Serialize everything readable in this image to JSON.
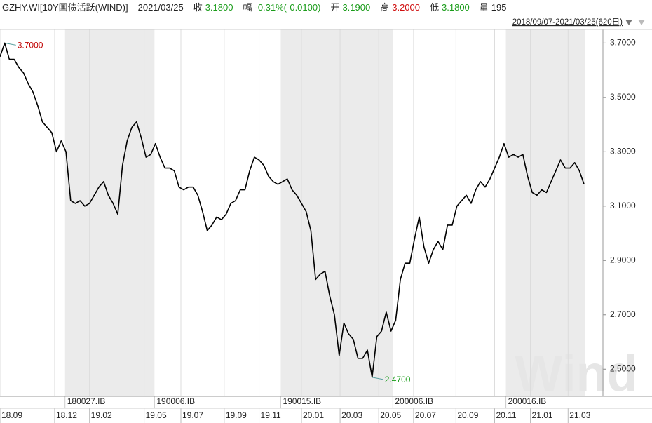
{
  "chart_data": {
    "type": "line",
    "ticker": "GZHY.WI[10Y国债活跃(WIND)]",
    "date": "2021/03/25",
    "quotes": [
      {
        "label": "收",
        "value": "3.1800",
        "color": "#1a9c1a"
      },
      {
        "label": "幅",
        "value": "-0.31%(-0.0100)",
        "color": "#1a9c1a"
      },
      {
        "label": "开",
        "value": "3.1900",
        "color": "#1a9c1a"
      },
      {
        "label": "高",
        "value": "3.2000",
        "color": "#d01010"
      },
      {
        "label": "低",
        "value": "3.1800",
        "color": "#1a9c1a"
      },
      {
        "label": "量",
        "value": "195",
        "color": "#222222"
      }
    ],
    "range_label": "2018/09/07-2021/03/25(620日)",
    "watermark": "Wind",
    "x": [
      0,
      5,
      10,
      15,
      20,
      25,
      30,
      35,
      40,
      45,
      50,
      55,
      60,
      65,
      70,
      75,
      80,
      85,
      90,
      95,
      100,
      105,
      110,
      115,
      120,
      125,
      130,
      135,
      140,
      145,
      150,
      155,
      160,
      165,
      170,
      175,
      180,
      185,
      190,
      195,
      200,
      205,
      210,
      215,
      220,
      225,
      230,
      235,
      240,
      245,
      250,
      255,
      260,
      265,
      270,
      275,
      280,
      285,
      290,
      295,
      300,
      305,
      310,
      315,
      320,
      325,
      330,
      335,
      340,
      345,
      350,
      355,
      360,
      365,
      370,
      375,
      380,
      385,
      390,
      395,
      400,
      405,
      410,
      415,
      420,
      425,
      430,
      435,
      440,
      445,
      450,
      455,
      460,
      465,
      470,
      475,
      480,
      485,
      490,
      495,
      500,
      505,
      510,
      515,
      520,
      525,
      530,
      535,
      540,
      545,
      550,
      555,
      560,
      565,
      570,
      575,
      580,
      585,
      590,
      595,
      600,
      605,
      610,
      615,
      620
    ],
    "series": [
      {
        "name": "GZHY.WI",
        "color": "#000000",
        "values": [
          3.65,
          3.7,
          3.64,
          3.64,
          3.61,
          3.59,
          3.55,
          3.52,
          3.47,
          3.41,
          3.39,
          3.37,
          3.3,
          3.34,
          3.3,
          3.12,
          3.11,
          3.12,
          3.1,
          3.11,
          3.14,
          3.17,
          3.19,
          3.14,
          3.11,
          3.07,
          3.25,
          3.34,
          3.39,
          3.41,
          3.35,
          3.28,
          3.29,
          3.33,
          3.28,
          3.24,
          3.24,
          3.23,
          3.17,
          3.16,
          3.17,
          3.17,
          3.14,
          3.08,
          3.01,
          3.03,
          3.06,
          3.05,
          3.07,
          3.11,
          3.12,
          3.16,
          3.16,
          3.23,
          3.28,
          3.27,
          3.25,
          3.21,
          3.19,
          3.18,
          3.19,
          3.2,
          3.16,
          3.14,
          3.11,
          3.08,
          3.01,
          2.83,
          2.85,
          2.86,
          2.77,
          2.7,
          2.55,
          2.67,
          2.63,
          2.61,
          2.54,
          2.54,
          2.57,
          2.47,
          2.62,
          2.64,
          2.71,
          2.64,
          2.68,
          2.83,
          2.89,
          2.89,
          2.98,
          3.06,
          2.95,
          2.89,
          2.94,
          2.97,
          2.94,
          3.03,
          3.03,
          3.1,
          3.12,
          3.14,
          3.11,
          3.16,
          3.19,
          3.17,
          3.2,
          3.24,
          3.28,
          3.33,
          3.28,
          3.29,
          3.28,
          3.29,
          3.21,
          3.15,
          3.14,
          3.16,
          3.15,
          3.19,
          3.23,
          3.27,
          3.24,
          3.24,
          3.26,
          3.23,
          3.18
        ]
      }
    ],
    "xlim": [
      0,
      640
    ],
    "xticks": [
      {
        "value": 0,
        "label": "18.09"
      },
      {
        "value": 58,
        "label": "18.12"
      },
      {
        "value": 95,
        "label": "19.02"
      },
      {
        "value": 153,
        "label": "19.05"
      },
      {
        "value": 192,
        "label": "19.07"
      },
      {
        "value": 238,
        "label": "19.09"
      },
      {
        "value": 275,
        "label": "19.11"
      },
      {
        "value": 320,
        "label": "20.01"
      },
      {
        "value": 361,
        "label": "20.03"
      },
      {
        "value": 402,
        "label": "20.05"
      },
      {
        "value": 439,
        "label": "20.07"
      },
      {
        "value": 484,
        "label": "20.09"
      },
      {
        "value": 525,
        "label": "20.11"
      },
      {
        "value": 563,
        "label": "21.01"
      },
      {
        "value": 603,
        "label": "21.03"
      }
    ],
    "ylim": [
      2.4,
      3.75
    ],
    "yticks": [
      {
        "value": 2.5,
        "label": "2.5000"
      },
      {
        "value": 2.7,
        "label": "2.7000"
      },
      {
        "value": 2.9,
        "label": "2.9000"
      },
      {
        "value": 3.1,
        "label": "3.1000"
      },
      {
        "value": 3.3,
        "label": "3.3000"
      },
      {
        "value": 3.5,
        "label": "3.5000"
      },
      {
        "value": 3.7,
        "label": "3.7000"
      }
    ],
    "contracts": [
      {
        "label": "180027.IB",
        "start": 69,
        "end": 164,
        "shaded": true
      },
      {
        "label": "190006.IB",
        "start": 164,
        "end": 298,
        "shaded": false
      },
      {
        "label": "190015.IB",
        "start": 298,
        "end": 417,
        "shaded": true
      },
      {
        "label": "200006.IB",
        "start": 417,
        "end": 537,
        "shaded": false
      },
      {
        "label": "200016.IB",
        "start": 537,
        "end": 621,
        "shaded": true
      }
    ],
    "annotations": [
      {
        "text": "3.7000",
        "x": 5,
        "y": 3.7,
        "color": "#c00000"
      },
      {
        "text": "2.4700",
        "x": 395,
        "y": 2.47,
        "color": "#1a9c1a"
      }
    ]
  }
}
